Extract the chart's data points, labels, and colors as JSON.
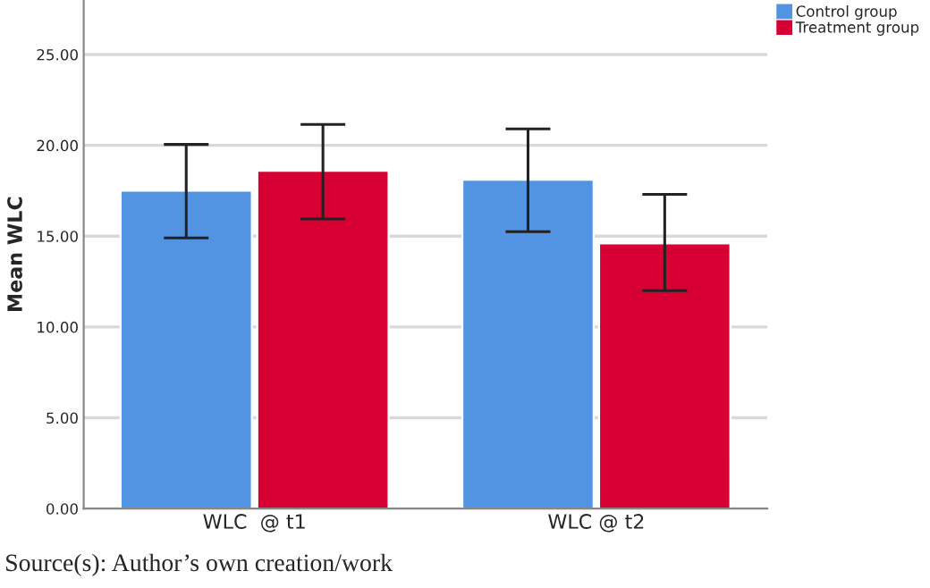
{
  "chart_data": {
    "type": "bar",
    "ylabel": "Mean WLC",
    "categories": [
      "WLC  @ t1",
      "WLC @ t2"
    ],
    "series": [
      {
        "name": "Control group",
        "color": "#5294e2",
        "values": [
          17.5,
          18.1
        ],
        "errors": [
          [
            14.9,
            20.05
          ],
          [
            15.25,
            20.9
          ]
        ]
      },
      {
        "name": "Treatment group",
        "color": "#d70033",
        "values": [
          18.6,
          14.6
        ],
        "errors": [
          [
            15.95,
            21.15
          ],
          [
            12.0,
            17.3
          ]
        ]
      }
    ],
    "ylim": [
      0,
      28
    ],
    "yticks": [
      {
        "value": 0,
        "label": "0.00"
      },
      {
        "value": 5,
        "label": "5.00"
      },
      {
        "value": 10,
        "label": "10.00"
      },
      {
        "value": 15,
        "label": "15.00"
      },
      {
        "value": 20,
        "label": "20.00"
      },
      {
        "value": 25,
        "label": "25.00"
      }
    ],
    "grid": "y",
    "legend": "top right",
    "annotations": [
      "Source(s): Author’s own creation/work"
    ]
  }
}
